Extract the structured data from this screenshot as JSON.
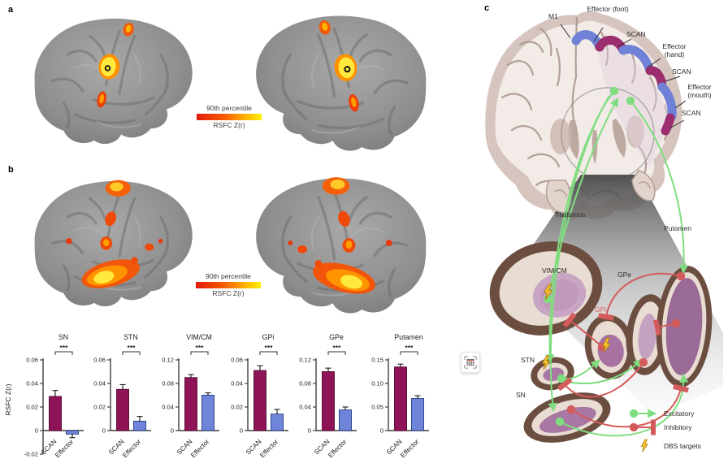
{
  "figure": {
    "panel_a_label": "a",
    "panel_b_label": "b",
    "panel_c_label": "c"
  },
  "panels": {
    "a": {
      "colorbar": {
        "title": "90th percentile",
        "caption": "RSFC Z(r)"
      }
    },
    "b": {
      "colorbar": {
        "title": "90th percentile",
        "caption": "RSFC Z(r)"
      }
    }
  },
  "chart_data": {
    "type": "bar",
    "categories": [
      "SCAN",
      "Effector"
    ],
    "ylabel": "RSFC Z(r)",
    "legend_position": "none",
    "grid": false,
    "charts": [
      {
        "title": "SN",
        "values": [
          0.029,
          -0.003
        ],
        "errors": [
          0.005,
          0.003
        ],
        "ylim": [
          -0.02,
          0.06
        ],
        "yticks": [
          -0.02,
          0,
          0.02,
          0.04,
          0.06
        ],
        "significance": "***"
      },
      {
        "title": "STN",
        "values": [
          0.035,
          0.008
        ],
        "errors": [
          0.004,
          0.004
        ],
        "ylim": [
          0,
          0.06
        ],
        "yticks": [
          0,
          0.02,
          0.04,
          0.06
        ],
        "significance": "***"
      },
      {
        "title": "VIM/CM",
        "values": [
          0.09,
          0.06
        ],
        "errors": [
          0.005,
          0.004
        ],
        "ylim": [
          0,
          0.12
        ],
        "yticks": [
          0,
          0.04,
          0.08,
          0.12
        ],
        "significance": "***"
      },
      {
        "title": "GPi",
        "values": [
          0.051,
          0.014
        ],
        "errors": [
          0.004,
          0.004
        ],
        "ylim": [
          0,
          0.06
        ],
        "yticks": [
          0,
          0.02,
          0.04,
          0.06
        ],
        "significance": "***"
      },
      {
        "title": "GPe",
        "values": [
          0.1,
          0.035
        ],
        "errors": [
          0.006,
          0.005
        ],
        "ylim": [
          0,
          0.12
        ],
        "yticks": [
          0,
          0.04,
          0.08,
          0.12
        ],
        "significance": "***"
      },
      {
        "title": "Putamen",
        "values": [
          0.135,
          0.068
        ],
        "errors": [
          0.006,
          0.006
        ],
        "ylim": [
          0,
          0.15
        ],
        "yticks": [
          0,
          0.05,
          0.1,
          0.15
        ],
        "significance": "***"
      }
    ]
  },
  "panel_c": {
    "labels": {
      "m1": "M1",
      "effector_foot": "Effector (foot)",
      "scan_1": "SCAN",
      "effector_hand": "Effector (hand)",
      "scan_2": "SCAN",
      "effector_mouth": "Effector (mouth)",
      "scan_3": "SCAN",
      "thalamus": "Thalamus",
      "putamen": "Putamen",
      "vim_cm": "VIM/CM",
      "gpe": "GPe",
      "gpi": "GPi",
      "stn": "STN",
      "sn": "SN"
    },
    "legend": {
      "excitatory": "Excitatory",
      "inhibitory": "Inhibitory",
      "dbs": "DBS targets"
    }
  },
  "colors": {
    "scan_bar": "#8E1457",
    "scan_bar_edge": "#55082F",
    "effector_bar": "#6E85DA",
    "effector_bar_edge": "#27397F",
    "excitatory": "#7FDD7F",
    "inhibitory": "#D45B5B",
    "dbs_bolt": "#F7C52E",
    "ribbon_effector_blue": "#7082D8",
    "ribbon_scan_magenta": "#9C2D6E",
    "gpi_label": "#E0655C",
    "heat_low": "#E21A0B",
    "heat_high": "#FFEE00"
  }
}
